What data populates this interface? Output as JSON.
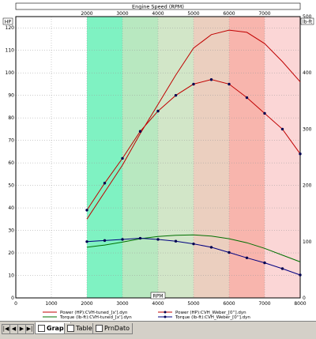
{
  "tabs": {
    "items": [
      {
        "label": "Graph",
        "active": true,
        "icon": "graph-icon"
      },
      {
        "label": "Table",
        "active": false,
        "icon": "table-icon"
      },
      {
        "label": "PrnDato",
        "active": false,
        "icon": "print-data-icon"
      }
    ],
    "nav": [
      "|◀",
      "◀",
      "▶",
      "▶|"
    ]
  },
  "colors": {
    "bands": [
      "#7ff2c2",
      "#b8e8c0",
      "#d2e6c8",
      "#ebcfbf",
      "#f8b5ad",
      "#fbd6d6"
    ],
    "power_tuned": "#c00000",
    "power_weber": "#c00000",
    "torque_tuned": "#007000",
    "torque_weber": "#000080"
  },
  "chart_data": {
    "type": "line",
    "title": "Engine Speed (RPM)",
    "top_axis_ticks": [
      "2000",
      "3000",
      "4000",
      "5000",
      "6000",
      "7000"
    ],
    "xlabel": "RPM",
    "xlim": [
      0,
      8000
    ],
    "x_ticks": [
      "0",
      "1000",
      "2000",
      "3000",
      "4000",
      "5000",
      "6000",
      "7000",
      "8000"
    ],
    "ylabel_left": "HP",
    "ylim_left": [
      0,
      125
    ],
    "y_ticks_left": [
      "0",
      "10",
      "20",
      "30",
      "40",
      "50",
      "60",
      "70",
      "80",
      "90",
      "100",
      "110",
      "120"
    ],
    "ylabel_right": "lb-ft",
    "ylim_right": [
      0,
      500
    ],
    "y_ticks_right": [
      "0",
      "100",
      "200",
      "300",
      "400",
      "500"
    ],
    "bands": [
      {
        "from": 2000,
        "to": 3000
      },
      {
        "from": 3000,
        "to": 4000
      },
      {
        "from": 4000,
        "to": 5000
      },
      {
        "from": 5000,
        "to": 6000
      },
      {
        "from": 6000,
        "to": 7000
      },
      {
        "from": 7000,
        "to": 8000
      }
    ],
    "grid": true,
    "legend_position": "bottom",
    "series": [
      {
        "name": "Power (HP):CVH-tuned_[x'].dyn",
        "axis": "left",
        "markers": false,
        "color": "#c00000",
        "x": [
          2000,
          2500,
          3000,
          3500,
          4000,
          4500,
          5000,
          5500,
          6000,
          6500,
          7000,
          7500,
          8000
        ],
        "y": [
          35,
          47,
          59,
          73,
          86,
          99,
          111,
          117,
          119,
          118,
          113,
          105,
          96
        ]
      },
      {
        "name": "Power (HP):CVH_Weber_[0''].dyn",
        "axis": "left",
        "markers": true,
        "color": "#c00000",
        "x": [
          2000,
          2500,
          3000,
          3500,
          4000,
          4500,
          5000,
          5500,
          6000,
          6500,
          7000,
          7500,
          8000
        ],
        "y": [
          39,
          51,
          62,
          74,
          83,
          90,
          95,
          97,
          95,
          89,
          82,
          75,
          64
        ]
      },
      {
        "name": "Torque (lb-ft):CVH-tuned_[x'].dyn",
        "axis": "left",
        "markers": false,
        "color": "#007000",
        "x": [
          2000,
          2500,
          3000,
          3500,
          4000,
          4500,
          5000,
          5500,
          6000,
          6500,
          7000,
          7500,
          8000
        ],
        "y": [
          22.5,
          23.5,
          24.8,
          26.3,
          27.3,
          27.8,
          28.0,
          27.5,
          26.3,
          24.5,
          22.0,
          19.0,
          16.0
        ]
      },
      {
        "name": "Torque (lb-ft):CVH_Weber_[0''].dyn",
        "axis": "left",
        "markers": true,
        "color": "#000080",
        "x": [
          2000,
          2500,
          3000,
          3500,
          4000,
          4500,
          5000,
          5500,
          6000,
          6500,
          7000,
          7500,
          8000
        ],
        "y": [
          25.0,
          25.5,
          26.0,
          26.5,
          26.0,
          25.2,
          24.0,
          22.5,
          20.2,
          17.8,
          15.6,
          13.0,
          10.2
        ]
      }
    ]
  }
}
